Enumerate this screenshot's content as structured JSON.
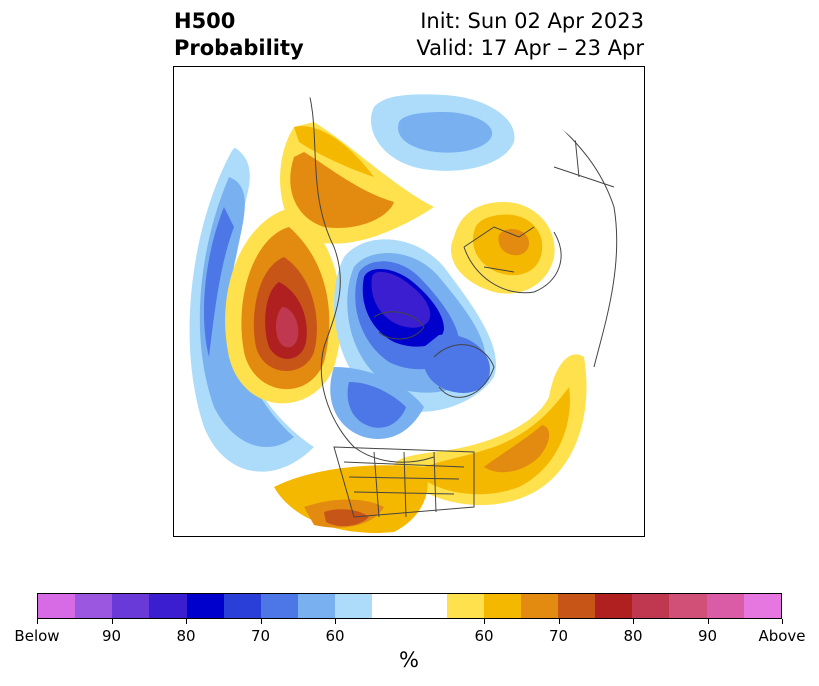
{
  "title": {
    "left_line1": "H500",
    "left_line2": "Probability",
    "right_line1": "Init: Sun 02 Apr 2023",
    "right_line2": "Valid: 17 Apr – 23 Apr"
  },
  "colorbar": {
    "unit": "%",
    "colors": [
      "#d76be6",
      "#9b57e0",
      "#6a3ad8",
      "#3a1ed0",
      "#0000cc",
      "#2a3fd8",
      "#4d76e6",
      "#78b0f0",
      "#acdcfa",
      "#ffffff",
      "#ffffff",
      "#ffe14d",
      "#f5b800",
      "#e38a10",
      "#c75518",
      "#b02020",
      "#c03850",
      "#d05078",
      "#da5ca6",
      "#e677e0"
    ],
    "ticks": [
      {
        "label": "Below",
        "index": 0
      },
      {
        "label": "90",
        "index": 2
      },
      {
        "label": "80",
        "index": 4
      },
      {
        "label": "70",
        "index": 6
      },
      {
        "label": "60",
        "index": 8
      },
      {
        "label": "60",
        "index": 12
      },
      {
        "label": "70",
        "index": 14
      },
      {
        "label": "80",
        "index": 16
      },
      {
        "label": "90",
        "index": 18
      },
      {
        "label": "Above",
        "index": 20
      }
    ]
  }
}
